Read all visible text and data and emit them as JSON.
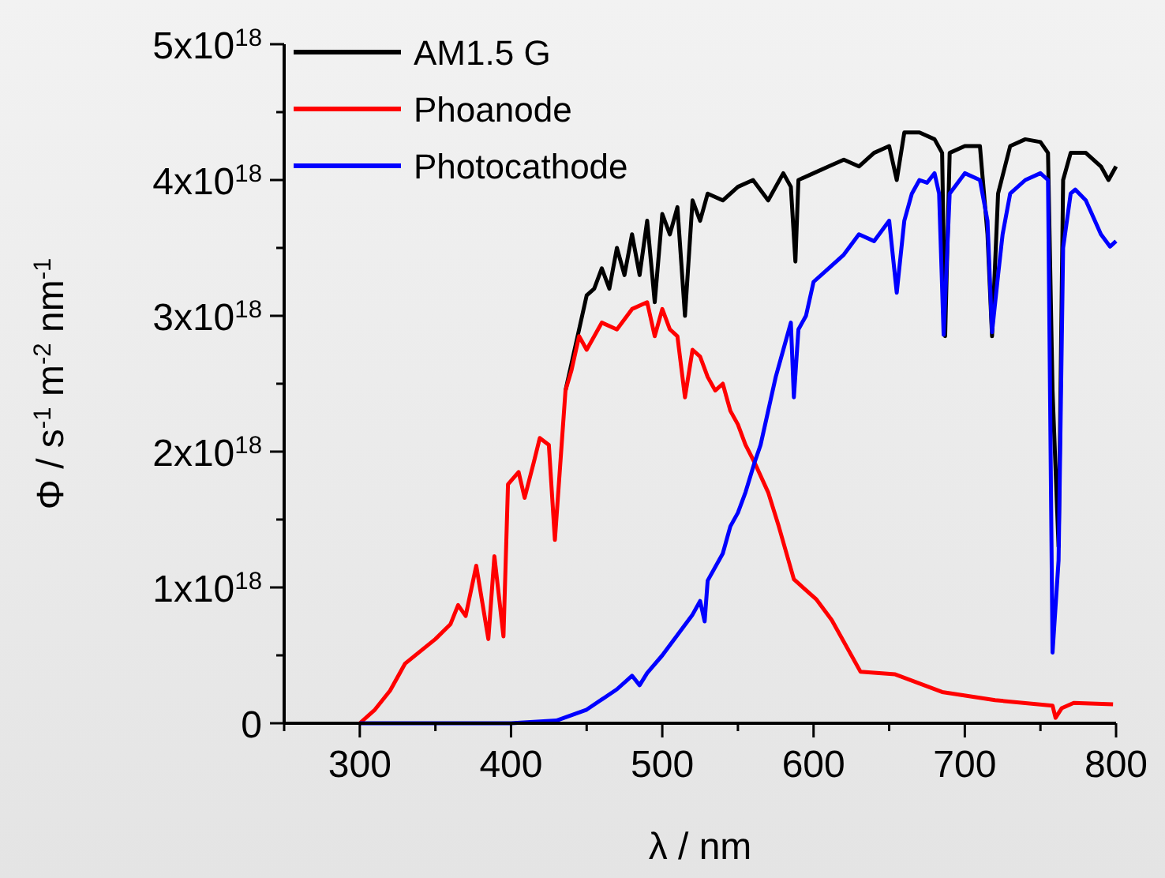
{
  "chart_data": {
    "type": "line",
    "xlabel": "λ / nm",
    "ylabel": "Φ / s$^{-1}$ m$^{-2}$ nm$^{-1}$",
    "xlim": [
      250,
      800
    ],
    "ylim": [
      0,
      5e+18
    ],
    "xticks": [
      {
        "value": 250,
        "label": null
      },
      300,
      {
        "value": 350,
        "label": null
      },
      400,
      {
        "value": 450,
        "label": null
      },
      500,
      {
        "value": 550,
        "label": null
      },
      600,
      {
        "value": 650,
        "label": null
      },
      700,
      {
        "value": 750,
        "label": null
      },
      800
    ],
    "yticks": [
      0,
      {
        "value": 5e+17,
        "label": null
      },
      {
        "value": 1e+18,
        "label": "1x10$^{18}$"
      },
      {
        "value": 1.5e+18,
        "label": null
      },
      {
        "value": 2e+18,
        "label": "2x10$^{18}$"
      },
      {
        "value": 2.5e+18,
        "label": null
      },
      {
        "value": 3e+18,
        "label": "3x10$^{18}$"
      },
      {
        "value": 3.5e+18,
        "label": null
      },
      {
        "value": 4e+18,
        "label": "4x10$^{18}$"
      },
      {
        "value": 4.5e+18,
        "label": null
      },
      {
        "value": 5e+18,
        "label": "5x10$^{18}$"
      }
    ],
    "legend": "top left",
    "grid": false,
    "marker": "none",
    "line_style": "solid",
    "series": [
      {
        "name": "AM1.5 G",
        "color": "#000000",
        "x": [
          436,
          440,
          445,
          450,
          455,
          460,
          465,
          470,
          475,
          480,
          485,
          490,
          495,
          500,
          505,
          510,
          515,
          520,
          525,
          530,
          540,
          550,
          560,
          570,
          580,
          585,
          588,
          590,
          600,
          610,
          620,
          630,
          640,
          650,
          655,
          660,
          670,
          680,
          685,
          687,
          690,
          700,
          710,
          715,
          718,
          722,
          730,
          740,
          750,
          755,
          758,
          762,
          765,
          770,
          780,
          790,
          795,
          800
        ],
        "values": [
          2.45e+18,
          2.65e+18,
          2.9e+18,
          3.15e+18,
          3.2e+18,
          3.35e+18,
          3.2e+18,
          3.5e+18,
          3.3e+18,
          3.6e+18,
          3.3e+18,
          3.7e+18,
          3.1e+18,
          3.75e+18,
          3.6e+18,
          3.8e+18,
          3e+18,
          3.85e+18,
          3.7e+18,
          3.9e+18,
          3.85e+18,
          3.95e+18,
          4e+18,
          3.85e+18,
          4.05e+18,
          3.95e+18,
          3.4e+18,
          4e+18,
          4.05e+18,
          4.1e+18,
          4.15e+18,
          4.1e+18,
          4.2e+18,
          4.25e+18,
          4e+18,
          4.35e+18,
          4.35e+18,
          4.3e+18,
          4.2e+18,
          2.85e+18,
          4.2e+18,
          4.25e+18,
          4.25e+18,
          3.6e+18,
          2.85e+18,
          3.9e+18,
          4.25e+18,
          4.3e+18,
          4.28e+18,
          4.2e+18,
          2.45e+18,
          1.3e+18,
          4e+18,
          4.2e+18,
          4.2e+18,
          4.1e+18,
          4e+18,
          4.1e+18
        ]
      },
      {
        "name": "Phoanode",
        "color": "#ff0000",
        "x": [
          300,
          310,
          320,
          330,
          340,
          350,
          360,
          365,
          370,
          377,
          385,
          389,
          395,
          398,
          405,
          409,
          415,
          419,
          425,
          429,
          436,
          440,
          445,
          450,
          460,
          470,
          480,
          490,
          495,
          500,
          505,
          510,
          515,
          520,
          525,
          530,
          535,
          540,
          545,
          550,
          555,
          561,
          570,
          577,
          587,
          602,
          612,
          631,
          654,
          685,
          720,
          758,
          760,
          764,
          772,
          798
        ],
        "values": [
          0,
          1e+17,
          2.4e+17,
          4.4e+17,
          5.3e+17,
          6.2e+17,
          7.3e+17,
          8.7e+17,
          7.9e+17,
          1.16e+18,
          6.2e+17,
          1.23e+18,
          6.4e+17,
          1.76e+18,
          1.85e+18,
          1.66e+18,
          1.92e+18,
          2.1e+18,
          2.05e+18,
          1.35e+18,
          2.45e+18,
          2.6e+18,
          2.85e+18,
          2.75e+18,
          2.95e+18,
          2.9e+18,
          3.05e+18,
          3.1e+18,
          2.85e+18,
          3.05e+18,
          2.9e+18,
          2.85e+18,
          2.4e+18,
          2.75e+18,
          2.7e+18,
          2.55e+18,
          2.45e+18,
          2.5e+18,
          2.3e+18,
          2.2e+18,
          2.05e+18,
          1.92e+18,
          1.7e+18,
          1.45e+18,
          1.06e+18,
          9.1e+17,
          7.6e+17,
          3.8e+17,
          3.6e+17,
          2.3e+17,
          1.7e+17,
          1.3e+17,
          4e+16,
          1.1e+17,
          1.5e+17,
          1.4e+17
        ]
      },
      {
        "name": "Photocathode",
        "color": "#0000ff",
        "x": [
          300,
          400,
          430,
          450,
          470,
          480,
          485,
          490,
          500,
          510,
          520,
          525,
          528,
          530,
          540,
          545,
          550,
          555,
          561,
          565,
          570,
          575,
          580,
          585,
          587,
          590,
          595,
          600,
          610,
          620,
          630,
          640,
          650,
          655,
          660,
          665,
          670,
          675,
          680,
          683,
          686,
          690,
          700,
          710,
          715,
          718,
          722,
          725,
          730,
          740,
          750,
          755,
          758,
          762,
          765,
          770,
          773,
          780,
          790,
          796,
          800
        ],
        "values": [
          0,
          0,
          2e+16,
          1e+17,
          2.5e+17,
          3.5e+17,
          2.8e+17,
          3.7e+17,
          5e+17,
          6.5e+17,
          8e+17,
          9e+17,
          7.5e+17,
          1.05e+18,
          1.25e+18,
          1.45e+18,
          1.55e+18,
          1.7e+18,
          1.92e+18,
          2.05e+18,
          2.3e+18,
          2.55e+18,
          2.75e+18,
          2.95e+18,
          2.4e+18,
          2.9e+18,
          3e+18,
          3.25e+18,
          3.35e+18,
          3.45e+18,
          3.6e+18,
          3.55e+18,
          3.7e+18,
          3.17e+18,
          3.7e+18,
          3.9e+18,
          4e+18,
          3.98e+18,
          4.05e+18,
          3.9e+18,
          2.86e+18,
          3.9e+18,
          4.05e+18,
          4e+18,
          3.7e+18,
          2.88e+18,
          3.3e+18,
          3.6e+18,
          3.9e+18,
          4e+18,
          4.05e+18,
          4e+18,
          5.2e+17,
          1.2e+18,
          3.5e+18,
          3.9e+18,
          3.93e+18,
          3.85e+18,
          3.6e+18,
          3.51e+18,
          3.55e+18
        ]
      }
    ]
  }
}
